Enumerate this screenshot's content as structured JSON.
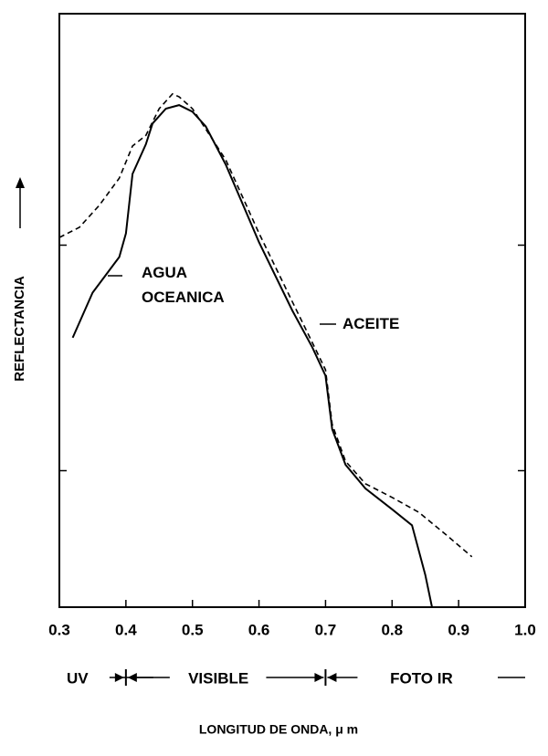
{
  "chart_data": {
    "type": "line",
    "xlabel": "LONGITUD DE ONDA, μ m",
    "ylabel": "REFLECTANCIA",
    "xlim": [
      0.3,
      1.0
    ],
    "xticks": [
      {
        "value": 0.3,
        "label": "0.3"
      },
      {
        "value": 0.4,
        "label": "0.4"
      },
      {
        "value": 0.5,
        "label": "0.5"
      },
      {
        "value": 0.6,
        "label": "0.6"
      },
      {
        "value": 0.7,
        "label": "0.7"
      },
      {
        "value": 0.8,
        "label": "0.8"
      },
      {
        "value": 0.9,
        "label": "0.9"
      },
      {
        "value": 1.0,
        "label": "1.0"
      }
    ],
    "ylim": [
      0,
      100
    ],
    "yticks": [
      23,
      61
    ],
    "band_edges": [
      0.4,
      0.7
    ],
    "band_labels": [
      "UV",
      "VISIBLE",
      "FOTO IR"
    ],
    "series": [
      {
        "name": "AGUA OCEANICA",
        "color": "#000000",
        "dashed": false,
        "x": [
          0.32,
          0.35,
          0.37,
          0.39,
          0.4,
          0.41,
          0.43,
          0.44,
          0.46,
          0.48,
          0.5,
          0.52,
          0.55,
          0.6,
          0.65,
          0.68,
          0.7,
          0.71,
          0.73,
          0.76,
          0.8,
          0.83,
          0.85,
          0.86
        ],
        "values": [
          45.4,
          53,
          56,
          59,
          63,
          73,
          78,
          81.5,
          84,
          84.6,
          83.5,
          81,
          74.6,
          61.5,
          50,
          43.8,
          39,
          30,
          24,
          20,
          16.5,
          13.8,
          5.4,
          0
        ]
      },
      {
        "name": "ACEITE",
        "color": "#000000",
        "dashed": true,
        "x": [
          0.3,
          0.33,
          0.36,
          0.39,
          0.41,
          0.43,
          0.45,
          0.47,
          0.48,
          0.5,
          0.55,
          0.6,
          0.65,
          0.68,
          0.7,
          0.71,
          0.73,
          0.76,
          0.8,
          0.84,
          0.88,
          0.92
        ],
        "values": [
          62.3,
          64,
          67.7,
          72.3,
          77.7,
          79.5,
          84,
          86.5,
          86,
          84,
          75.4,
          63,
          51.5,
          44.6,
          40,
          30.8,
          24.6,
          20.8,
          18.5,
          16,
          12.3,
          8.5
        ]
      }
    ]
  }
}
